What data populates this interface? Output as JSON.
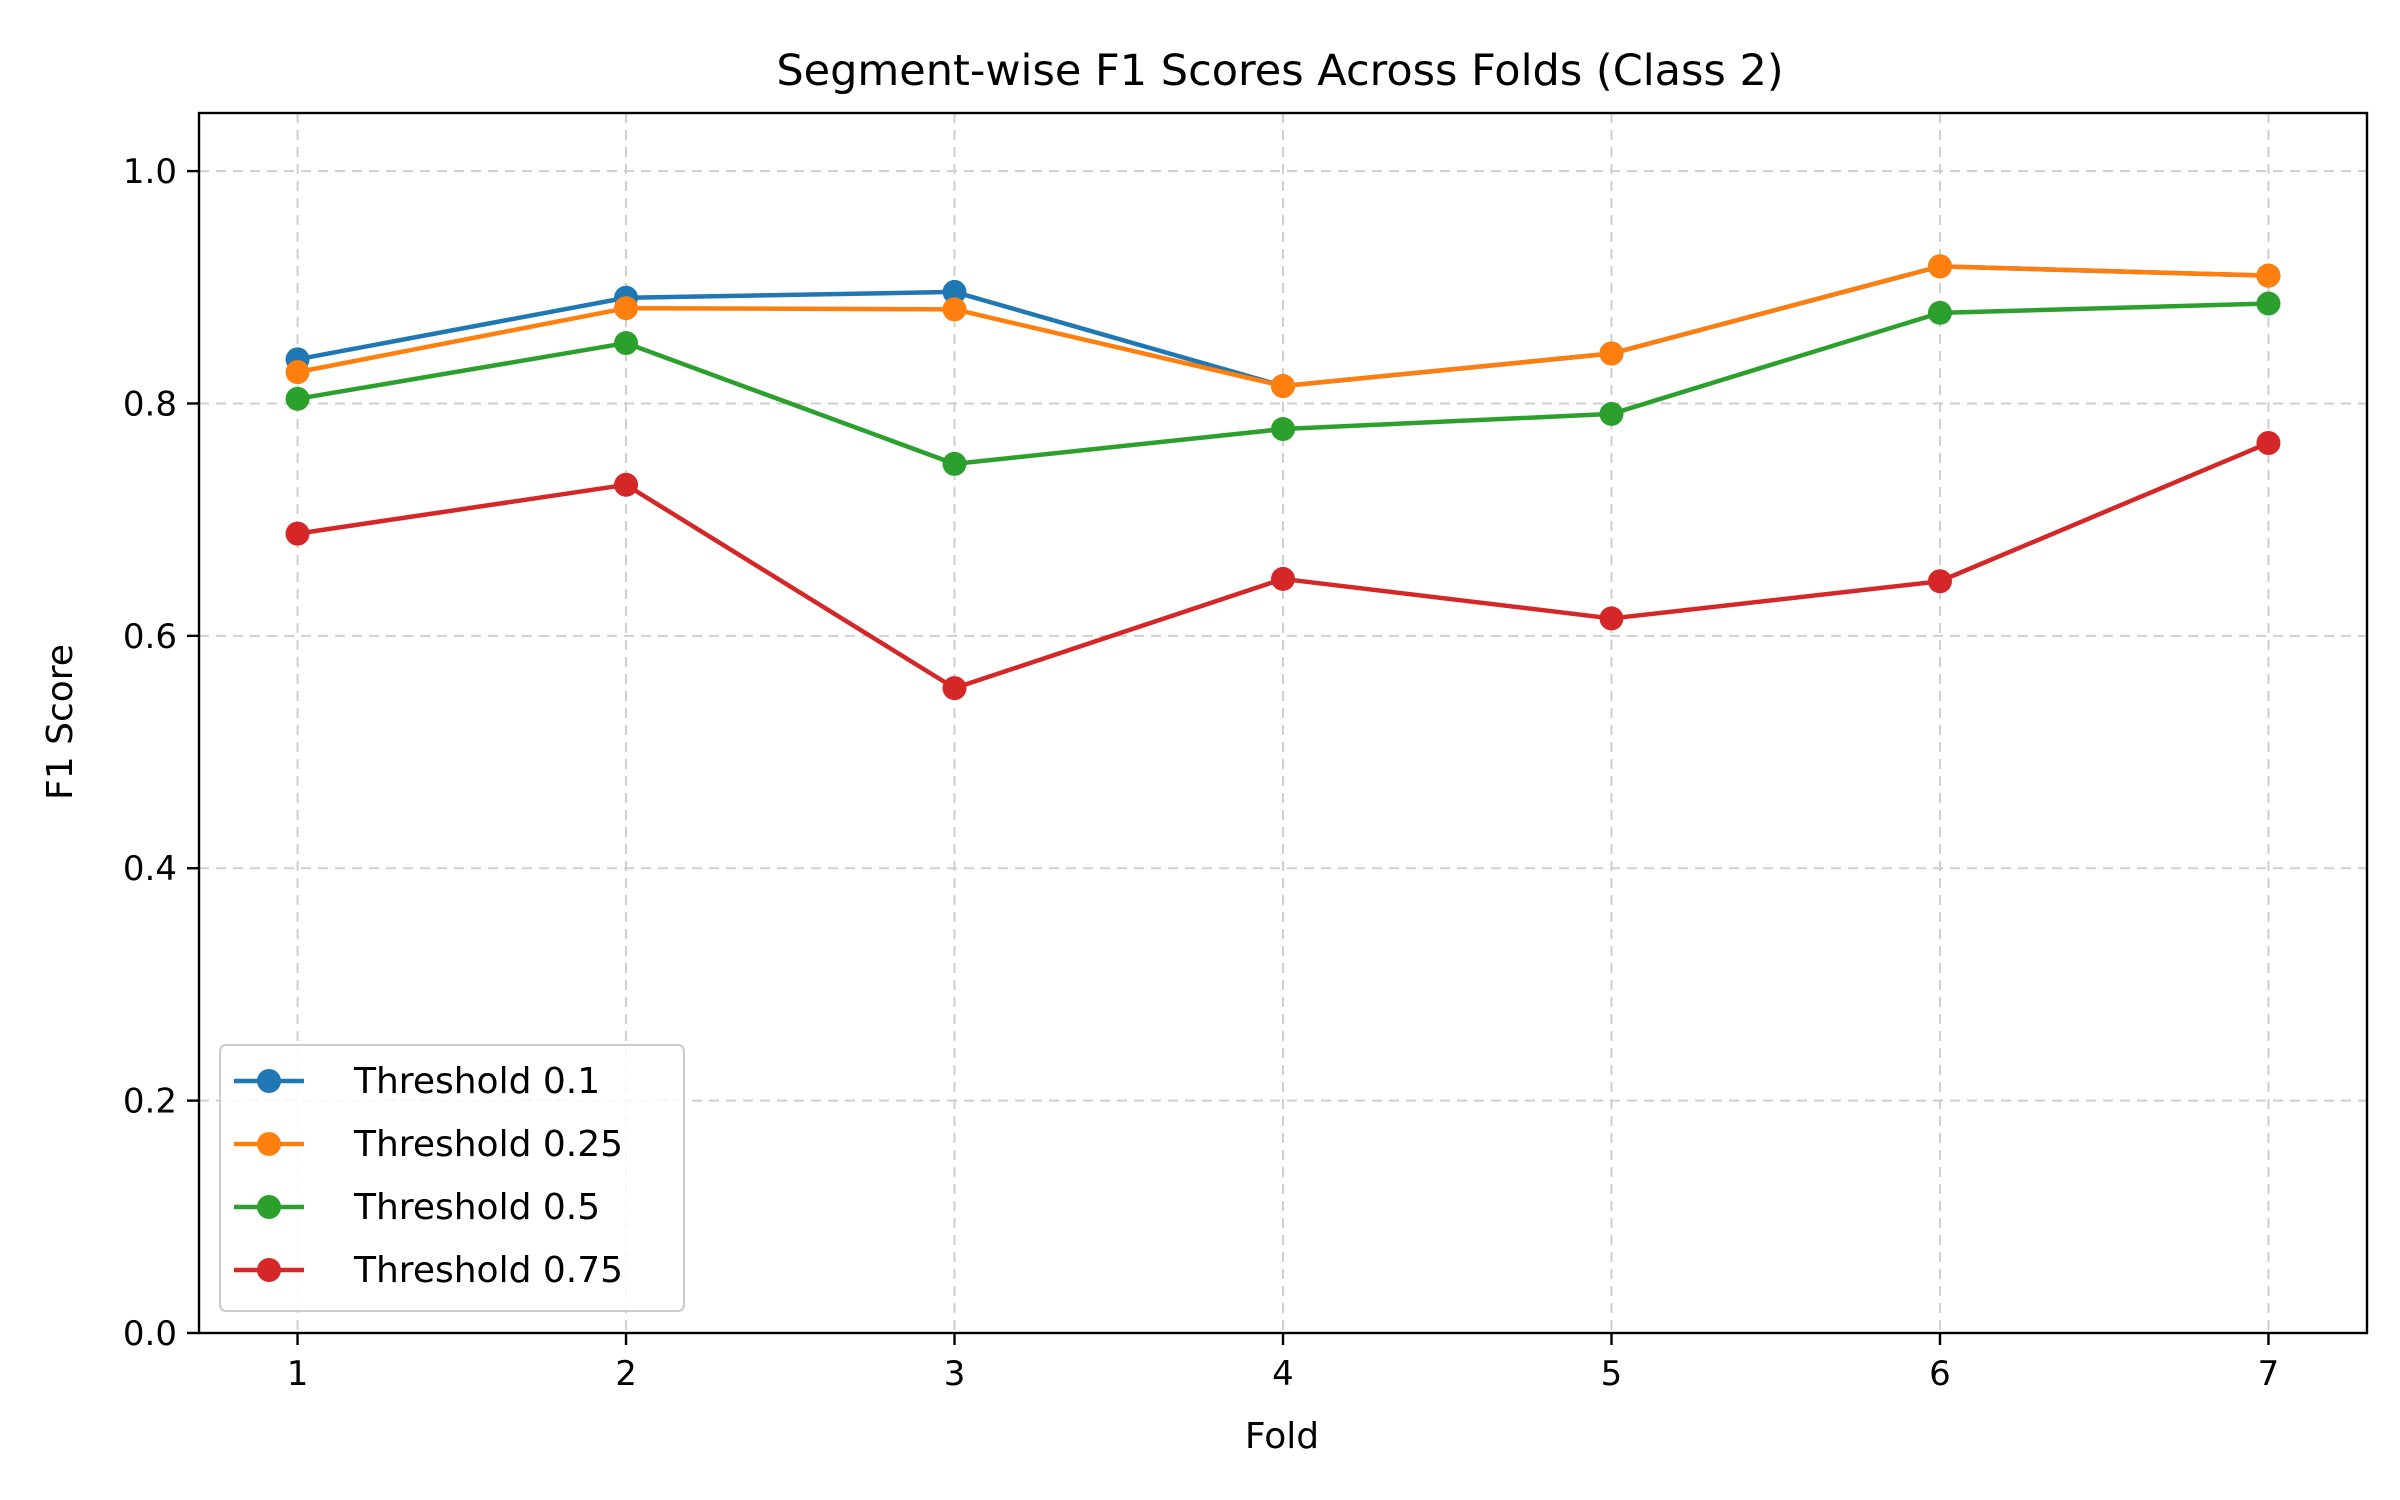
{
  "chart_data": {
    "type": "line",
    "title": "Segment-wise F1 Scores Across Folds (Class 2)",
    "xlabel": "Fold",
    "ylabel": "F1 Score",
    "x": [
      1,
      2,
      3,
      4,
      5,
      6,
      7
    ],
    "xlim": [
      0.7,
      7.3
    ],
    "ylim": [
      0.0,
      1.05
    ],
    "yticks": [
      0.0,
      0.2,
      0.4,
      0.6,
      0.8,
      1.0
    ],
    "ytick_labels": [
      "0.0",
      "0.2",
      "0.4",
      "0.6",
      "0.8",
      "1.0"
    ],
    "xtick_labels": [
      "1",
      "2",
      "3",
      "4",
      "5",
      "6",
      "7"
    ],
    "grid": true,
    "legend_position": "lower-left",
    "series": [
      {
        "name": "Threshold 0.1",
        "color": "#1f77b4",
        "values": [
          0.838,
          0.891,
          0.896,
          0.815,
          0.843,
          0.918,
          0.91
        ]
      },
      {
        "name": "Threshold 0.25",
        "color": "#ff7f0e",
        "values": [
          0.827,
          0.882,
          0.881,
          0.815,
          0.843,
          0.918,
          0.91
        ]
      },
      {
        "name": "Threshold 0.5",
        "color": "#2ca02c",
        "values": [
          0.804,
          0.852,
          0.748,
          0.778,
          0.791,
          0.878,
          0.886
        ]
      },
      {
        "name": "Threshold 0.75",
        "color": "#d62728",
        "values": [
          0.688,
          0.73,
          0.555,
          0.649,
          0.615,
          0.647,
          0.766
        ]
      }
    ]
  }
}
